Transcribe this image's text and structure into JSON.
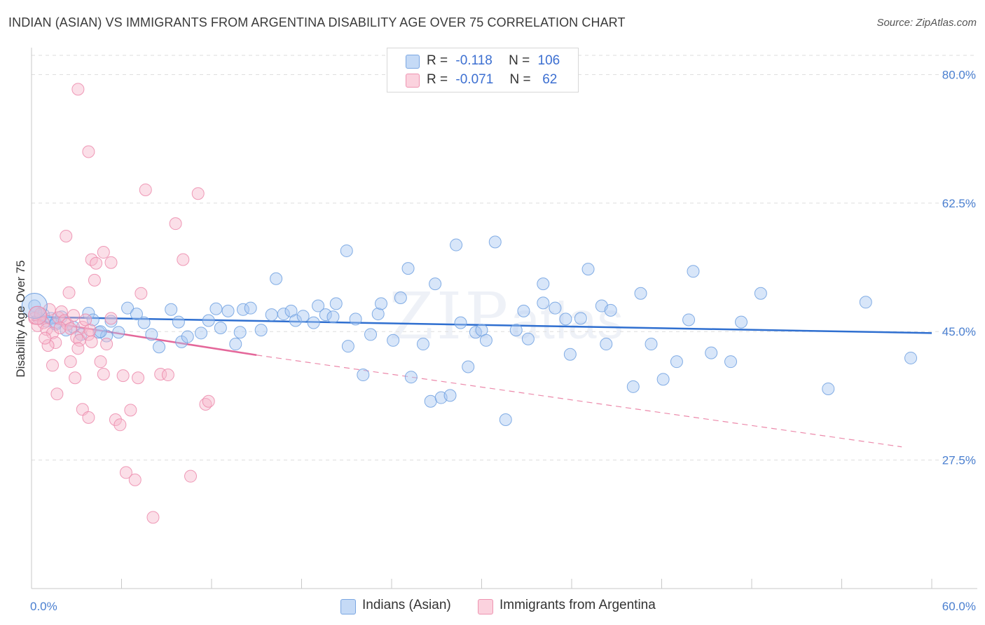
{
  "header": {
    "title": "INDIAN (ASIAN) VS IMMIGRANTS FROM ARGENTINA DISABILITY AGE OVER 75 CORRELATION CHART",
    "source": "Source: ZipAtlas.com"
  },
  "watermark": {
    "big": "ZIP",
    "small": "atlas"
  },
  "legend": {
    "rows": [
      {
        "r_label": "R =",
        "r_value": "-0.118",
        "n_label": "N =",
        "n_value": "106",
        "color": "#a9c8f2"
      },
      {
        "r_label": "R =",
        "r_value": "-0.071",
        "n_label": "N =",
        "n_value": " 62",
        "color": "#f7b9cb"
      }
    ]
  },
  "bottom_legend": {
    "items": [
      {
        "label": "Indians (Asian)",
        "color": "#a9c8f2"
      },
      {
        "label": "Immigrants from Argentina",
        "color": "#f7b9cb"
      }
    ]
  },
  "chart_data": {
    "type": "scatter",
    "title": "INDIAN (ASIAN) VS IMMIGRANTS FROM ARGENTINA DISABILITY AGE OVER 75 CORRELATION CHART",
    "xlabel": "",
    "ylabel": "Disability Age Over 75",
    "xlim": [
      0,
      60
    ],
    "ylim": [
      10,
      83
    ],
    "x_tick_labels": [
      "0.0%",
      "60.0%"
    ],
    "y_ticks": [
      27.5,
      45.0,
      62.5,
      80.0
    ],
    "y_tick_labels": [
      "27.5%",
      "45.0%",
      "62.5%",
      "80.0%"
    ],
    "grid": true,
    "legend_position": "top-center",
    "series": [
      {
        "name": "Indians (Asian)",
        "color": "#6fa0e0",
        "fill": "#a9c8f2",
        "trend": {
          "x": [
            0,
            60
          ],
          "y": [
            47.0,
            44.8
          ]
        },
        "points": [
          [
            0.2,
            48.5
          ],
          [
            0.5,
            46.8
          ],
          [
            0.8,
            47.3
          ],
          [
            1.0,
            46.4
          ],
          [
            1.3,
            46.8
          ],
          [
            1.6,
            46.2
          ],
          [
            2.0,
            47.0
          ],
          [
            2.3,
            45.2
          ],
          [
            2.8,
            45.6
          ],
          [
            3.3,
            44.6
          ],
          [
            3.8,
            47.5
          ],
          [
            4.1,
            46.6
          ],
          [
            4.5,
            44.9
          ],
          [
            5.0,
            44.4
          ],
          [
            5.3,
            46.4
          ],
          [
            5.8,
            44.9
          ],
          [
            6.4,
            48.2
          ],
          [
            7.0,
            47.4
          ],
          [
            7.5,
            46.2
          ],
          [
            8.0,
            44.6
          ],
          [
            8.5,
            42.9
          ],
          [
            9.3,
            48.0
          ],
          [
            10.0,
            43.6
          ],
          [
            10.4,
            44.3
          ],
          [
            11.3,
            44.8
          ],
          [
            11.8,
            46.5
          ],
          [
            12.3,
            48.1
          ],
          [
            12.6,
            45.5
          ],
          [
            13.1,
            47.8
          ],
          [
            13.6,
            43.3
          ],
          [
            13.9,
            44.9
          ],
          [
            14.1,
            48.0
          ],
          [
            14.6,
            48.2
          ],
          [
            15.3,
            45.2
          ],
          [
            16.0,
            47.3
          ],
          [
            16.3,
            52.2
          ],
          [
            16.8,
            47.4
          ],
          [
            17.3,
            47.8
          ],
          [
            17.6,
            46.5
          ],
          [
            18.1,
            47.1
          ],
          [
            18.8,
            46.2
          ],
          [
            19.1,
            48.5
          ],
          [
            19.6,
            47.3
          ],
          [
            20.1,
            47.0
          ],
          [
            20.3,
            48.8
          ],
          [
            21.0,
            56.0
          ],
          [
            21.1,
            43.0
          ],
          [
            21.6,
            46.7
          ],
          [
            22.1,
            39.1
          ],
          [
            22.6,
            44.6
          ],
          [
            23.1,
            47.4
          ],
          [
            23.3,
            48.8
          ],
          [
            24.1,
            43.8
          ],
          [
            24.6,
            49.6
          ],
          [
            25.1,
            53.6
          ],
          [
            25.3,
            38.8
          ],
          [
            26.1,
            43.3
          ],
          [
            26.6,
            35.5
          ],
          [
            26.9,
            51.5
          ],
          [
            27.3,
            36.0
          ],
          [
            27.9,
            36.3
          ],
          [
            28.3,
            56.8
          ],
          [
            28.6,
            46.2
          ],
          [
            29.1,
            40.2
          ],
          [
            29.6,
            44.9
          ],
          [
            30.0,
            45.2
          ],
          [
            30.3,
            43.8
          ],
          [
            30.9,
            57.2
          ],
          [
            31.6,
            33.0
          ],
          [
            32.3,
            45.2
          ],
          [
            32.8,
            47.8
          ],
          [
            33.1,
            44.0
          ],
          [
            34.1,
            51.5
          ],
          [
            34.1,
            48.9
          ],
          [
            34.9,
            48.2
          ],
          [
            35.6,
            46.7
          ],
          [
            35.9,
            41.9
          ],
          [
            36.6,
            46.8
          ],
          [
            37.1,
            53.5
          ],
          [
            38.0,
            48.5
          ],
          [
            38.3,
            43.3
          ],
          [
            38.6,
            47.9
          ],
          [
            40.1,
            37.5
          ],
          [
            40.6,
            50.2
          ],
          [
            41.3,
            43.3
          ],
          [
            42.1,
            38.5
          ],
          [
            43.0,
            40.9
          ],
          [
            43.8,
            46.6
          ],
          [
            44.1,
            53.2
          ],
          [
            45.3,
            42.1
          ],
          [
            46.6,
            40.9
          ],
          [
            47.3,
            46.3
          ],
          [
            48.6,
            50.2
          ],
          [
            53.1,
            37.2
          ],
          [
            55.6,
            49.0
          ],
          [
            58.6,
            41.4
          ],
          [
            0.3,
            47.6
          ],
          [
            1.6,
            46.0
          ],
          [
            4.6,
            45.0
          ],
          [
            9.8,
            46.3
          ]
        ]
      },
      {
        "name": "Immigrants from Argentina",
        "color": "#ec8aab",
        "fill": "#f7b9cb",
        "trend": {
          "x": [
            0,
            15
          ],
          "y": [
            46.6,
            41.8
          ],
          "dashed_to": {
            "x": 58,
            "y": 29.3
          }
        },
        "points": [
          [
            0.2,
            46.8
          ],
          [
            0.4,
            45.8
          ],
          [
            0.6,
            47.4
          ],
          [
            0.8,
            46.2
          ],
          [
            1.0,
            45.3
          ],
          [
            1.2,
            48.0
          ],
          [
            1.4,
            44.8
          ],
          [
            1.6,
            43.5
          ],
          [
            1.8,
            46.9
          ],
          [
            2.0,
            47.7
          ],
          [
            2.2,
            46.5
          ],
          [
            2.4,
            46.0
          ],
          [
            2.6,
            45.4
          ],
          [
            2.8,
            47.2
          ],
          [
            3.0,
            44.2
          ],
          [
            3.2,
            43.8
          ],
          [
            3.4,
            45.6
          ],
          [
            3.6,
            46.6
          ],
          [
            3.8,
            44.6
          ],
          [
            4.0,
            43.6
          ],
          [
            1.1,
            43.1
          ],
          [
            1.4,
            40.4
          ],
          [
            1.7,
            36.5
          ],
          [
            2.3,
            58.0
          ],
          [
            2.6,
            40.9
          ],
          [
            2.9,
            38.7
          ],
          [
            3.1,
            42.7
          ],
          [
            3.4,
            34.4
          ],
          [
            3.8,
            33.3
          ],
          [
            4.0,
            54.8
          ],
          [
            4.2,
            52.0
          ],
          [
            4.6,
            40.9
          ],
          [
            4.8,
            39.2
          ],
          [
            5.0,
            43.3
          ],
          [
            5.3,
            46.8
          ],
          [
            5.6,
            33.0
          ],
          [
            5.9,
            32.3
          ],
          [
            6.1,
            39.0
          ],
          [
            6.3,
            25.8
          ],
          [
            6.6,
            34.3
          ],
          [
            6.9,
            24.8
          ],
          [
            7.1,
            38.7
          ],
          [
            7.3,
            50.2
          ],
          [
            7.6,
            64.3
          ],
          [
            8.1,
            19.7
          ],
          [
            8.6,
            39.2
          ],
          [
            9.1,
            39.1
          ],
          [
            9.6,
            59.7
          ],
          [
            10.1,
            54.8
          ],
          [
            10.6,
            25.3
          ],
          [
            11.1,
            63.8
          ],
          [
            11.6,
            35.1
          ],
          [
            11.8,
            35.5
          ],
          [
            3.1,
            78.0
          ],
          [
            3.8,
            69.5
          ],
          [
            4.3,
            54.3
          ],
          [
            4.8,
            55.8
          ],
          [
            5.3,
            54.4
          ],
          [
            2.5,
            50.3
          ],
          [
            1.9,
            45.5
          ],
          [
            0.9,
            44.1
          ],
          [
            3.9,
            45.2
          ]
        ]
      }
    ]
  }
}
